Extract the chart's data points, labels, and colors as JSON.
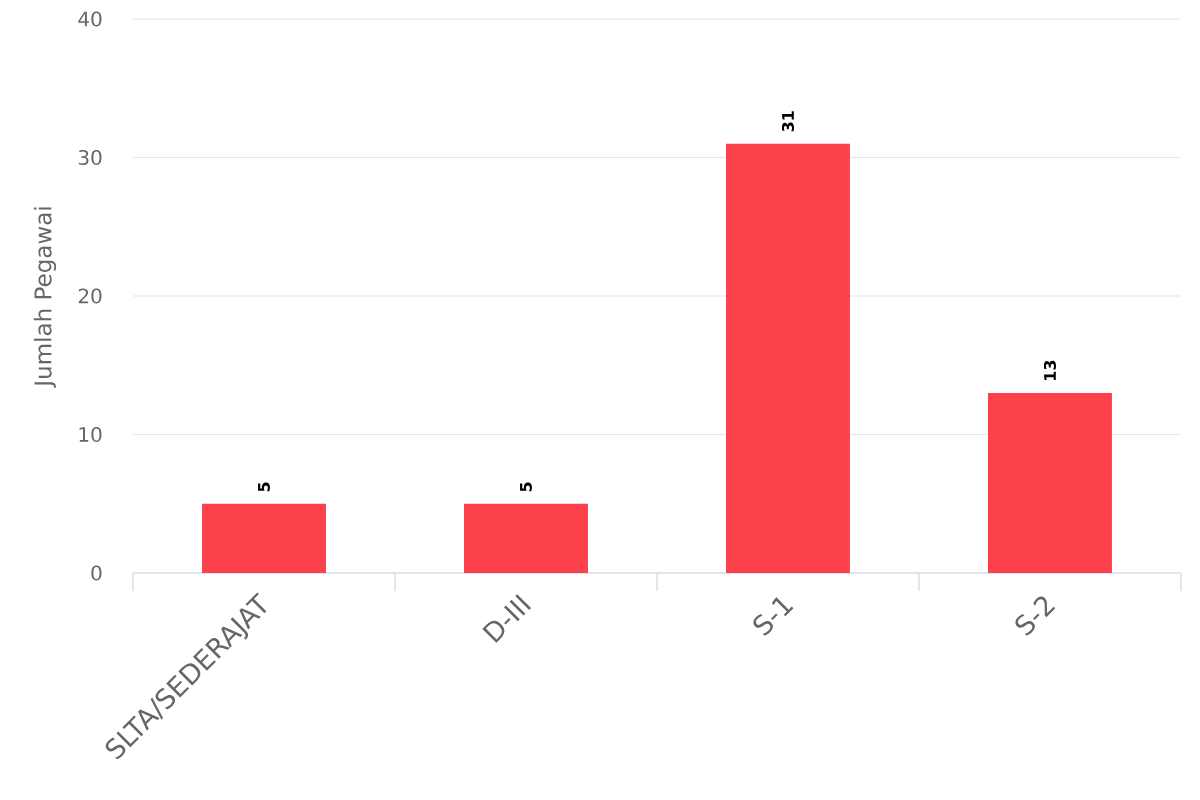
{
  "chart_data": {
    "type": "bar",
    "ylabel": "Jumlah Pegawai",
    "categories": [
      "SLTA/SEDERAJAT",
      "D-III",
      "S-1",
      "S-2"
    ],
    "values": [
      5,
      5,
      31,
      13
    ],
    "color": "#fc404c",
    "ylim": [
      0,
      40
    ],
    "yticks": [
      0,
      10,
      20,
      30,
      40
    ],
    "grid": "y",
    "data_labels": true
  }
}
